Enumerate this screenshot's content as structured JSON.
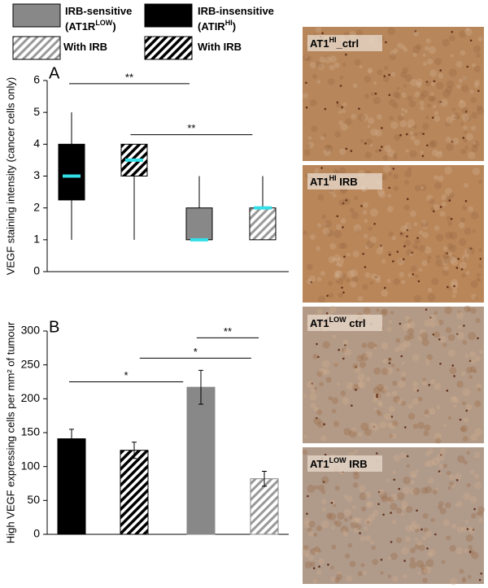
{
  "legend": [
    {
      "color": "#888888",
      "hatched": false,
      "lines": [
        [
          {
            "text": "IRB-sensitive"
          }
        ],
        [
          {
            "text": "(AT1R"
          },
          {
            "text": "LOW",
            "sup": true
          },
          {
            "text": ")"
          }
        ]
      ]
    },
    {
      "color": "#000000",
      "hatched": false,
      "lines": [
        [
          {
            "text": "IRB-insensitive"
          }
        ],
        [
          {
            "text": "(ATIR"
          },
          {
            "text": "HI",
            "sup": true
          },
          {
            "text": ")"
          }
        ]
      ]
    },
    {
      "color": "#888888",
      "hatched": true,
      "lines": [
        [
          {
            "text": "With IRB"
          }
        ]
      ]
    },
    {
      "color": "#000000",
      "hatched": true,
      "lines": [
        [
          {
            "text": "With IRB"
          }
        ]
      ]
    }
  ],
  "chart_data": [
    {
      "type": "box",
      "panel_label": "A",
      "y_label": "VEGF staining intensity (cancer cells only)",
      "ylim": [
        0,
        6
      ],
      "yticks": [
        0,
        1,
        2,
        3,
        4,
        5,
        6
      ],
      "median_color": "#33e0e8",
      "boxes": [
        {
          "color": "#000000",
          "hatched": false,
          "whisker_low": 1,
          "q1": 2.25,
          "median": 3,
          "q3": 4,
          "whisker_high": 5
        },
        {
          "color": "#000000",
          "hatched": true,
          "whisker_low": 1,
          "q1": 3,
          "median": 3.5,
          "q3": 4,
          "whisker_high": 4
        },
        {
          "color": "#888888",
          "hatched": false,
          "whisker_low": 1,
          "q1": 1,
          "median": 1,
          "q3": 2,
          "whisker_high": 3
        },
        {
          "color": "#888888",
          "hatched": true,
          "whisker_low": 1,
          "q1": 1,
          "median": 2,
          "q3": 2,
          "whisker_high": 3
        }
      ],
      "annotations": [
        {
          "text": "**",
          "from": 0,
          "to": 2,
          "y": 5.9
        },
        {
          "text": "**",
          "from": 1,
          "to": 3,
          "y": 4.3
        }
      ]
    },
    {
      "type": "bar",
      "panel_label": "B",
      "y_label": "High VEGF expressing cells per mm² of tumour",
      "ylim": [
        0,
        300
      ],
      "yticks": [
        0,
        50,
        100,
        150,
        200,
        250,
        300
      ],
      "values": [
        141,
        124,
        217,
        82
      ],
      "errors": [
        14,
        12,
        25,
        11
      ],
      "colors": [
        "#000000",
        "#000000",
        "#888888",
        "#888888"
      ],
      "hatched": [
        false,
        true,
        false,
        true
      ],
      "annotations": [
        {
          "text": "**",
          "from": 2.05,
          "to": 3.1,
          "y": 290
        },
        {
          "text": "*",
          "from": 1.15,
          "to": 2.98,
          "y": 260
        },
        {
          "text": "*",
          "from": 0,
          "to": 1.9,
          "y": 225
        }
      ]
    }
  ],
  "images": [
    {
      "label": [
        {
          "text": "AT1"
        },
        {
          "text": "HI",
          "sup": true
        },
        {
          "text": "_ctrl"
        }
      ]
    },
    {
      "label": [
        {
          "text": "AT1"
        },
        {
          "text": "HI",
          "sup": true
        },
        {
          "text": " IRB"
        }
      ]
    },
    {
      "label": [
        {
          "text": "AT1"
        },
        {
          "text": "LOW",
          "sup": true
        },
        {
          "text": " ctrl"
        }
      ]
    },
    {
      "label": [
        {
          "text": "AT1"
        },
        {
          "text": "LOW",
          "sup": true
        },
        {
          "text": " IRB"
        }
      ]
    }
  ]
}
